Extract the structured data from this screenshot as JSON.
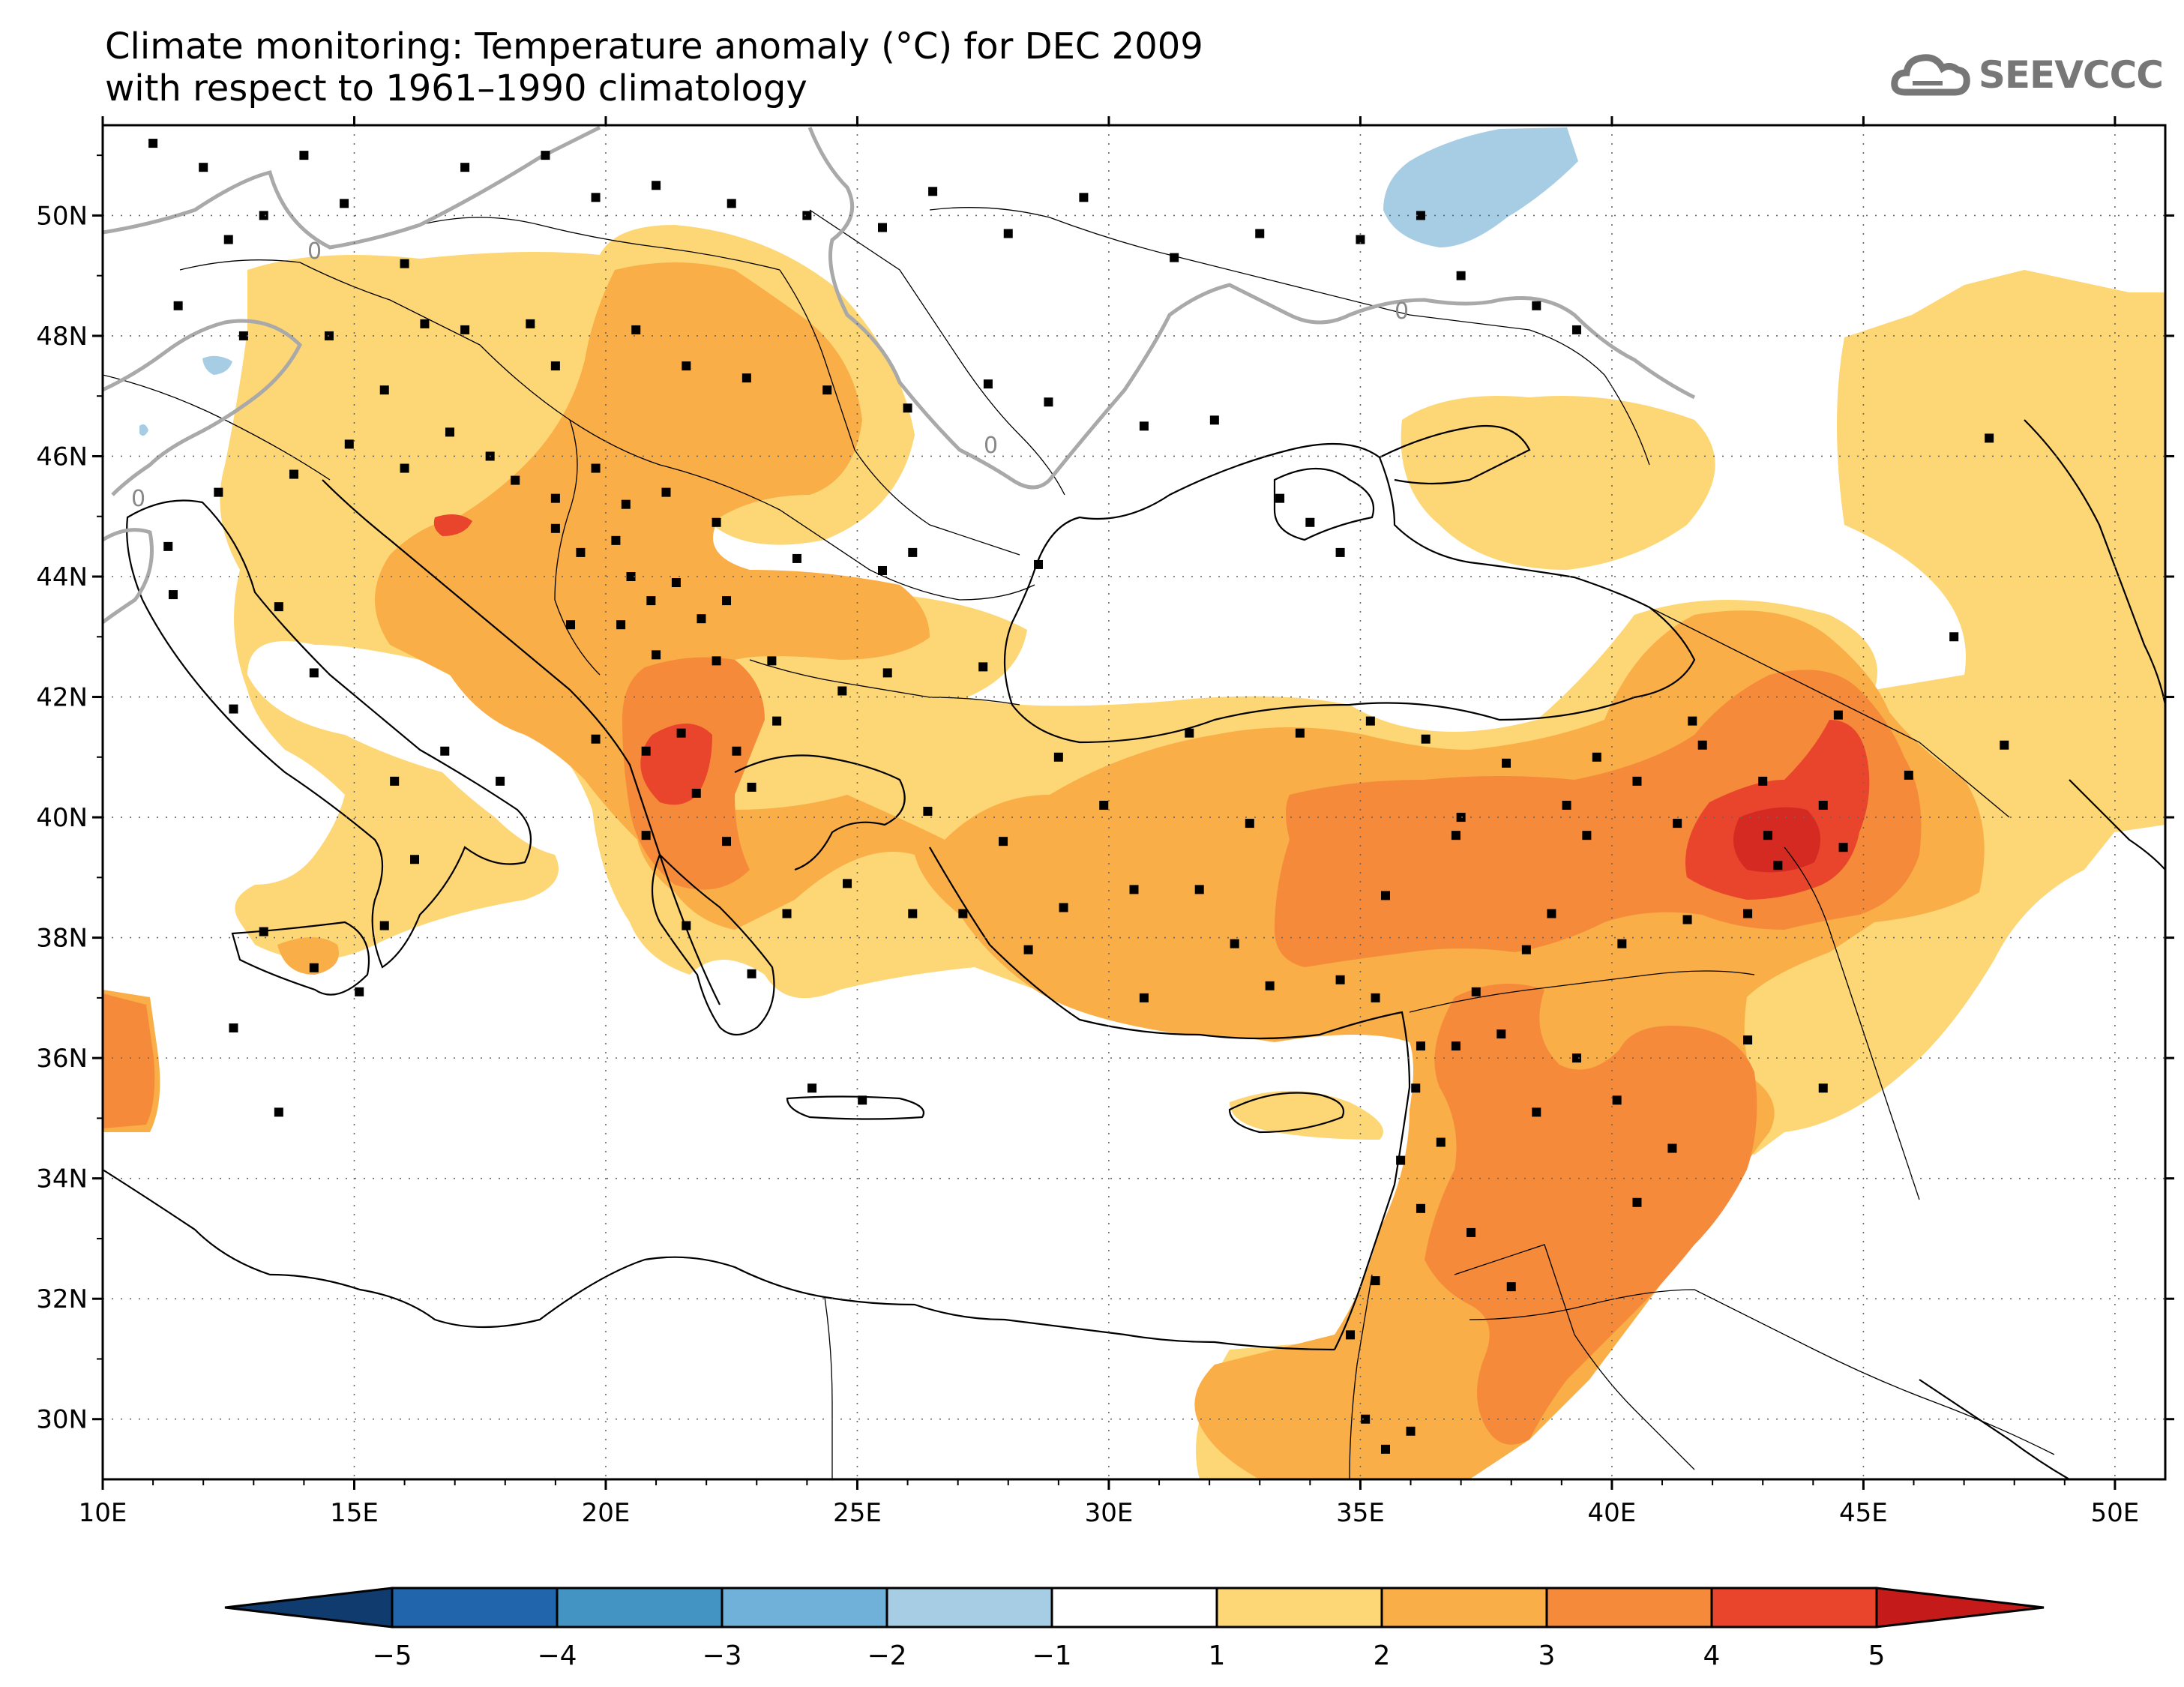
{
  "title": {
    "line1": "Climate monitoring: Temperature anomaly (°C) for DEC 2009",
    "line2": "with respect to 1961–1990 climatology"
  },
  "logo": {
    "text": "SEEVCCC",
    "icon": "cloud-icon"
  },
  "map": {
    "lon_range": [
      10,
      51
    ],
    "lat_range": [
      29,
      51.5
    ],
    "lon_ticks": [
      "10E",
      "15E",
      "20E",
      "25E",
      "30E",
      "35E",
      "40E",
      "45E",
      "50E"
    ],
    "lat_ticks": [
      "30N",
      "32N",
      "34N",
      "36N",
      "38N",
      "40N",
      "42N",
      "44N",
      "46N",
      "48N",
      "50N"
    ],
    "contour_label": "0",
    "grid": "dotted"
  },
  "colorbar": {
    "labels": [
      "−5",
      "−4",
      "−3",
      "−2",
      "−1",
      "1",
      "2",
      "3",
      "4",
      "5"
    ],
    "colors": [
      "#0f3b6e",
      "#2166ac",
      "#4393c3",
      "#6fb1d8",
      "#a6cde3",
      "#ffffff",
      "#fdd675",
      "#f9ae47",
      "#f58a3b",
      "#e8452c",
      "#c41a1a"
    ]
  }
}
